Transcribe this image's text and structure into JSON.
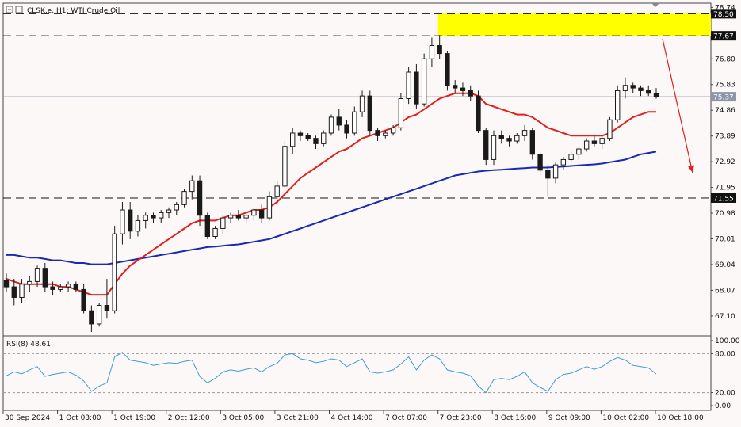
{
  "header": {
    "symbol_line": "CLSK.e, H1: WTI Crude Oil"
  },
  "rsi_header": "RSI(8) 48.61",
  "colors": {
    "background": "#fcf8f8",
    "bull_candle": "#1a1a1a",
    "bear_candle": "#1a1a1a",
    "ma_fast": "#e0201b",
    "ma_slow": "#1a2ab0",
    "rsi_line": "#3c9bd8",
    "zone": "#ffff00",
    "arrow": "#e0201b",
    "price_line": "#8c96a8"
  },
  "chart_data": {
    "type": "candlestick",
    "title": "CLSK.e, H1: WTI Crude Oil",
    "price_axis_ticks": [
      "78.74",
      "76.80",
      "75.83",
      "74.86",
      "73.89",
      "72.92",
      "71.95",
      "70.98",
      "70.01",
      "69.04",
      "68.07",
      "67.10"
    ],
    "price_range": [
      66.35,
      78.9
    ],
    "time_labels": [
      "30 Sep 2024",
      "1 Oct 03:00",
      "1 Oct 19:00",
      "2 Oct 12:00",
      "3 Oct 05:00",
      "3 Oct 21:00",
      "4 Oct 14:00",
      "7 Oct 07:00",
      "7 Oct 23:00",
      "8 Oct 16:00",
      "9 Oct 09:00",
      "10 Oct 02:00",
      "10 Oct 18:00"
    ],
    "horizontal_levels": [
      {
        "value": 78.5,
        "label": "78.50"
      },
      {
        "value": 77.67,
        "label": "77.67"
      },
      {
        "value": 71.55,
        "label": "71.55"
      }
    ],
    "current_price": {
      "value": 75.37,
      "label": "75.37"
    },
    "resistance_zone": {
      "from": 77.67,
      "to": 78.5
    },
    "ohlc": [
      [
        68.45,
        68.7,
        68.0,
        68.2
      ],
      [
        68.2,
        68.5,
        67.5,
        67.8
      ],
      [
        67.8,
        68.5,
        67.6,
        68.3
      ],
      [
        68.3,
        68.6,
        68.0,
        68.4
      ],
      [
        68.4,
        69.0,
        68.2,
        68.9
      ],
      [
        68.9,
        69.1,
        68.0,
        68.2
      ],
      [
        68.2,
        68.4,
        67.9,
        68.1
      ],
      [
        68.1,
        68.3,
        68.0,
        68.2
      ],
      [
        68.2,
        68.4,
        68.0,
        68.3
      ],
      [
        68.3,
        68.4,
        68.0,
        68.1
      ],
      [
        68.1,
        68.3,
        67.2,
        67.3
      ],
      [
        67.3,
        67.5,
        66.5,
        66.8
      ],
      [
        66.8,
        67.6,
        66.7,
        67.5
      ],
      [
        67.5,
        68.5,
        67.0,
        67.3
      ],
      [
        67.3,
        70.5,
        67.2,
        70.2
      ],
      [
        70.2,
        71.4,
        69.8,
        71.1
      ],
      [
        71.1,
        71.4,
        70.0,
        70.3
      ],
      [
        70.3,
        70.9,
        70.1,
        70.7
      ],
      [
        70.7,
        71.0,
        70.4,
        70.9
      ],
      [
        70.9,
        71.0,
        70.6,
        70.8
      ],
      [
        70.8,
        71.1,
        70.6,
        71.0
      ],
      [
        71.0,
        71.2,
        70.8,
        71.1
      ],
      [
        71.1,
        71.4,
        70.9,
        71.3
      ],
      [
        71.3,
        71.9,
        71.2,
        71.8
      ],
      [
        71.8,
        72.4,
        71.5,
        72.2
      ],
      [
        72.2,
        72.4,
        70.5,
        70.9
      ],
      [
        70.9,
        71.0,
        70.0,
        70.1
      ],
      [
        70.1,
        70.5,
        70.0,
        70.4
      ],
      [
        70.4,
        70.9,
        70.2,
        70.8
      ],
      [
        70.8,
        71.0,
        70.6,
        70.9
      ],
      [
        70.9,
        71.1,
        70.7,
        70.8
      ],
      [
        70.8,
        71.0,
        70.6,
        70.9
      ],
      [
        70.9,
        71.2,
        70.7,
        71.1
      ],
      [
        71.1,
        71.3,
        70.6,
        70.8
      ],
      [
        70.8,
        71.8,
        70.7,
        71.6
      ],
      [
        71.6,
        72.2,
        71.3,
        72.0
      ],
      [
        72.0,
        73.7,
        71.9,
        73.5
      ],
      [
        73.5,
        74.2,
        73.2,
        74.0
      ],
      [
        74.0,
        74.1,
        73.7,
        73.9
      ],
      [
        73.9,
        74.0,
        73.7,
        73.8
      ],
      [
        73.8,
        73.9,
        73.4,
        73.6
      ],
      [
        73.6,
        74.1,
        73.5,
        74.0
      ],
      [
        74.0,
        74.7,
        73.9,
        74.6
      ],
      [
        74.6,
        74.9,
        74.1,
        74.3
      ],
      [
        74.3,
        74.5,
        73.8,
        74.0
      ],
      [
        74.0,
        75.0,
        73.9,
        74.8
      ],
      [
        74.8,
        75.6,
        74.6,
        75.4
      ],
      [
        75.4,
        75.6,
        73.9,
        74.1
      ],
      [
        74.1,
        74.2,
        73.7,
        73.9
      ],
      [
        73.9,
        74.1,
        73.8,
        74.0
      ],
      [
        74.0,
        74.3,
        73.9,
        74.2
      ],
      [
        74.2,
        75.5,
        74.1,
        75.3
      ],
      [
        75.3,
        76.5,
        75.1,
        76.3
      ],
      [
        76.3,
        76.6,
        74.9,
        75.1
      ],
      [
        75.1,
        77.0,
        75.0,
        76.8
      ],
      [
        76.8,
        77.6,
        76.5,
        77.3
      ],
      [
        77.3,
        77.7,
        76.8,
        77.0
      ],
      [
        77.0,
        77.1,
        75.6,
        75.8
      ],
      [
        75.8,
        76.0,
        75.5,
        75.7
      ],
      [
        75.7,
        75.9,
        75.4,
        75.6
      ],
      [
        75.6,
        75.8,
        75.2,
        75.4
      ],
      [
        75.4,
        75.6,
        74.0,
        74.1
      ],
      [
        74.1,
        74.2,
        72.8,
        73.0
      ],
      [
        73.0,
        74.1,
        72.8,
        73.9
      ],
      [
        73.9,
        74.1,
        73.6,
        73.8
      ],
      [
        73.8,
        73.9,
        73.5,
        73.7
      ],
      [
        73.7,
        74.0,
        73.6,
        73.9
      ],
      [
        73.9,
        74.3,
        73.7,
        74.1
      ],
      [
        74.1,
        74.2,
        73.0,
        73.2
      ],
      [
        73.2,
        73.3,
        72.4,
        72.6
      ],
      [
        72.6,
        72.8,
        71.6,
        72.3
      ],
      [
        72.3,
        72.9,
        72.1,
        72.8
      ],
      [
        72.8,
        73.1,
        72.6,
        73.0
      ],
      [
        73.0,
        73.3,
        72.9,
        73.2
      ],
      [
        73.2,
        73.5,
        73.0,
        73.4
      ],
      [
        73.4,
        73.8,
        73.3,
        73.7
      ],
      [
        73.7,
        73.9,
        73.5,
        73.6
      ],
      [
        73.6,
        73.9,
        73.4,
        73.8
      ],
      [
        73.8,
        74.6,
        73.7,
        74.5
      ],
      [
        74.5,
        75.8,
        74.4,
        75.6
      ],
      [
        75.6,
        76.1,
        75.3,
        75.8
      ],
      [
        75.8,
        75.9,
        75.5,
        75.7
      ],
      [
        75.7,
        75.8,
        75.4,
        75.6
      ],
      [
        75.6,
        75.8,
        75.4,
        75.5
      ],
      [
        75.5,
        75.7,
        75.3,
        75.37
      ]
    ],
    "ma_fast_values": [
      68.5,
      68.4,
      68.3,
      68.3,
      68.3,
      68.3,
      68.3,
      68.2,
      68.2,
      68.1,
      68.0,
      67.9,
      67.9,
      67.9,
      68.3,
      68.7,
      69.0,
      69.2,
      69.4,
      69.6,
      69.8,
      70.0,
      70.2,
      70.4,
      70.6,
      70.7,
      70.7,
      70.7,
      70.8,
      70.9,
      70.9,
      71.0,
      71.1,
      71.1,
      71.2,
      71.4,
      71.7,
      72.0,
      72.3,
      72.5,
      72.7,
      72.9,
      73.1,
      73.3,
      73.4,
      73.6,
      73.8,
      73.9,
      74.0,
      74.1,
      74.2,
      74.4,
      74.6,
      74.7,
      74.9,
      75.1,
      75.3,
      75.4,
      75.5,
      75.5,
      75.5,
      75.4,
      75.1,
      75.0,
      74.9,
      74.8,
      74.7,
      74.7,
      74.6,
      74.4,
      74.2,
      74.1,
      74.0,
      73.9,
      73.9,
      73.9,
      73.9,
      73.9,
      74.0,
      74.2,
      74.4,
      74.6,
      74.7,
      74.8,
      74.8
    ],
    "ma_slow_values": [
      69.4,
      69.4,
      69.35,
      69.3,
      69.3,
      69.25,
      69.2,
      69.2,
      69.15,
      69.1,
      69.1,
      69.05,
      69.05,
      69.05,
      69.1,
      69.15,
      69.2,
      69.25,
      69.3,
      69.35,
      69.4,
      69.45,
      69.5,
      69.55,
      69.6,
      69.65,
      69.7,
      69.72,
      69.75,
      69.78,
      69.8,
      69.85,
      69.9,
      69.95,
      70.0,
      70.1,
      70.2,
      70.3,
      70.4,
      70.5,
      70.6,
      70.7,
      70.8,
      70.9,
      71.0,
      71.1,
      71.2,
      71.3,
      71.4,
      71.5,
      71.6,
      71.7,
      71.8,
      71.9,
      72.0,
      72.1,
      72.2,
      72.3,
      72.4,
      72.45,
      72.5,
      72.55,
      72.58,
      72.6,
      72.62,
      72.64,
      72.66,
      72.68,
      72.7,
      72.7,
      72.7,
      72.72,
      72.74,
      72.76,
      72.78,
      72.8,
      72.82,
      72.85,
      72.9,
      72.95,
      73.0,
      73.1,
      73.2,
      73.25,
      73.3
    ],
    "rsi": {
      "label": "RSI(8)",
      "value": "48.61",
      "axis_ticks": [
        "100.00",
        "80.00",
        "20.00",
        "0.00"
      ],
      "levels": [
        80,
        20
      ],
      "values": [
        46,
        52,
        49,
        55,
        60,
        45,
        48,
        50,
        52,
        47,
        38,
        22,
        30,
        35,
        75,
        82,
        70,
        68,
        66,
        62,
        64,
        66,
        65,
        68,
        70,
        45,
        35,
        42,
        52,
        55,
        53,
        56,
        58,
        52,
        60,
        65,
        78,
        80,
        72,
        70,
        66,
        68,
        72,
        70,
        60,
        66,
        72,
        52,
        50,
        52,
        55,
        64,
        75,
        55,
        70,
        78,
        72,
        55,
        52,
        50,
        46,
        30,
        20,
        40,
        42,
        40,
        45,
        52,
        35,
        28,
        22,
        40,
        48,
        50,
        55,
        60,
        56,
        60,
        68,
        74,
        70,
        62,
        60,
        58,
        48.61
      ]
    }
  },
  "annotation_arrow": {
    "label": ""
  }
}
